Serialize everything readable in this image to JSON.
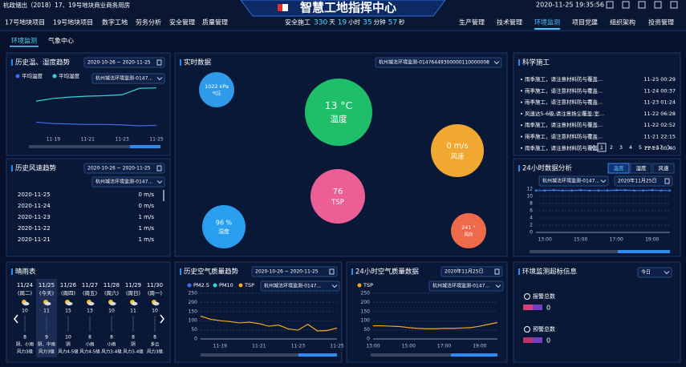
{
  "header": {
    "project": "杭政储出（2018）17、19号地块商业商务用房",
    "title": "智慧工地指挥中心",
    "datetime": "2020-11-25 19:35:56"
  },
  "nav_left": [
    "17号地块项目",
    "19号地块项目",
    "数字工地",
    "劳务分析",
    "安全管理",
    "质量管理"
  ],
  "nav_right": [
    "生产管理",
    "技术管理",
    "环境监测",
    "项目党建",
    "组织架构",
    "投资管理"
  ],
  "nav_right_active": 2,
  "safety": {
    "label": "安全施工",
    "parts": [
      {
        "value": 330,
        "unit": "天"
      },
      {
        "value": 19,
        "unit": "小时"
      },
      {
        "value": 35,
        "unit": "分钟"
      },
      {
        "value": 57,
        "unit": "秒"
      }
    ]
  },
  "tabs": [
    "环境监测",
    "气象中心"
  ],
  "temp_humidity": {
    "title": "历史温、湿度趋势",
    "date_range": "2020-10-26 ~ 2020-11-25",
    "device": "杭州城洁环境监测-0147...",
    "categories": [
      null,
      "11-19",
      null,
      "11-21",
      null,
      "11-23",
      null,
      "11-25"
    ],
    "ylim": [
      0,
      100
    ],
    "series": [
      {
        "name": "平均温度",
        "color": "#3d6fe8",
        "values": [
          22,
          19,
          18,
          17,
          17,
          16,
          14,
          15
        ]
      },
      {
        "name": "平均湿度",
        "color": "#2fd8d8",
        "values": [
          68,
          74,
          77,
          79,
          80,
          82,
          96,
          97
        ]
      }
    ]
  },
  "realtime": {
    "title": "实时数据",
    "device": "杭州城洁环境监测-01476449300000110000008",
    "bubbles": [
      {
        "value": "1022 kPa",
        "label": "气压",
        "color": "#2f9be8"
      },
      {
        "value": "13 °C",
        "label": "温度",
        "color": "#1fbf6a"
      },
      {
        "value": "0 m/s",
        "label": "风速",
        "color": "#f0a830"
      },
      {
        "value": "76",
        "label": "TSP",
        "color": "#ec5f95"
      },
      {
        "value": "96 %",
        "label": "湿度",
        "color": "#2a9ff0"
      },
      {
        "value": "241 °",
        "label": "风向",
        "color": "#ee6a4a"
      }
    ]
  },
  "science": {
    "title": "科学施工",
    "items": [
      {
        "text": "雨季施工，请注意材料防与覆盖...",
        "time": "11-25 00:29"
      },
      {
        "text": "雨季施工，请注意材料防与覆盖...",
        "time": "11-24 00:37"
      },
      {
        "text": "雨季施工，请注意材料防与覆盖...",
        "time": "11-23 01:24"
      },
      {
        "text": "风速达5-6级,请注意扬尘覆盖;室...",
        "time": "11-22 06:28"
      },
      {
        "text": "雨季施工，请注意材料防与覆盖...",
        "time": "11-22 02:52"
      },
      {
        "text": "雨季施工，请注意材料防与覆盖...",
        "time": "11-21 22:15"
      },
      {
        "text": "雨季施工，请注意材料防与覆盖...",
        "time": "11-20 00:40"
      }
    ],
    "pages": [
      "1",
      "2",
      "3",
      "4",
      "5",
      "•••",
      "17"
    ],
    "active_page": 0
  },
  "wind_history": {
    "title": "历史风速趋势",
    "date_range": "2020-10-26 ~ 2020-11-25",
    "device": "杭州城洁环境监测-0147...",
    "rows": [
      {
        "date": "2020-11-25",
        "value": "0 m/s"
      },
      {
        "date": "2020-11-24",
        "value": "0 m/s"
      },
      {
        "date": "2020-11-23",
        "value": "1 m/s"
      },
      {
        "date": "2020-11-22",
        "value": "1 m/s"
      },
      {
        "date": "2020-11-21",
        "value": "1 m/s"
      }
    ]
  },
  "day_analysis": {
    "title": "24小时数据分析",
    "tabs": [
      "温度",
      "湿度",
      "风速"
    ],
    "active_tab": 0,
    "device": "杭州城洁环境监测-0147...",
    "date": "2020年11月25日",
    "categories": [
      null,
      "13:00",
      null,
      null,
      null,
      "15:00",
      null,
      null,
      null,
      "17:00",
      null,
      null,
      null,
      "19:00",
      null,
      null
    ],
    "ylim": [
      0,
      12
    ],
    "yticks": [
      0,
      2,
      4,
      6,
      8,
      10,
      12
    ],
    "markers": true,
    "color": "#3d7ff0",
    "values": [
      11.6,
      11.6,
      11.7,
      11.6,
      11.6,
      11.7,
      11.6,
      11.6,
      11.6,
      11.7,
      11.7,
      11.6,
      11.6,
      11.7,
      11.6,
      11.6
    ]
  },
  "forecast": {
    "title": "晴雨表",
    "days": [
      {
        "date": "11/24",
        "weekday": "(周二)",
        "high": 10,
        "low": 8,
        "weather": "阴、小雨",
        "wind": "风力3级"
      },
      {
        "date": "11/25",
        "weekday": "(今天)",
        "high": 11,
        "low": 9,
        "weather": "阴、中雨",
        "wind": "风力3级"
      },
      {
        "date": "11/26",
        "weekday": "(周四)",
        "high": 15,
        "low": 10,
        "weather": "阴",
        "wind": "风力4-5级"
      },
      {
        "date": "11/27",
        "weekday": "(周五)",
        "high": 13,
        "low": 8,
        "weather": "小雨",
        "wind": "风力4-5级"
      },
      {
        "date": "11/28",
        "weekday": "(周六)",
        "high": 10,
        "low": 8,
        "weather": "小雨",
        "wind": "风力3-4级"
      },
      {
        "date": "11/29",
        "weekday": "(周日)",
        "high": 11,
        "low": 8,
        "weather": "阴",
        "wind": "风力3-4级"
      },
      {
        "date": "11/30",
        "weekday": "(周一)",
        "high": 10,
        "low": 8,
        "weather": "多云",
        "wind": "风力3级"
      }
    ],
    "today": 1
  },
  "air_trend": {
    "title": "历史空气质量趋势",
    "date_range": "2020-10-26 ~ 2020-11-25",
    "device": "杭州城洁环境监测-0147...",
    "categories": [
      null,
      null,
      "11-19",
      null,
      null,
      null,
      "11-21",
      null,
      null,
      null,
      "11-23",
      null,
      null,
      null,
      "11-25"
    ],
    "ylim": [
      0,
      250
    ],
    "yticks": [
      0,
      50,
      100,
      150,
      200,
      250
    ],
    "series": [
      {
        "name": "PM2.5",
        "color": "#3d6fe8",
        "values": [
          null,
          null,
          null,
          null,
          null,
          null,
          null,
          null,
          null,
          null,
          null,
          null,
          null,
          null,
          null
        ]
      },
      {
        "name": "PM10",
        "color": "#2fd8d8",
        "values": [
          null,
          null,
          null,
          null,
          null,
          null,
          null,
          null,
          null,
          null,
          null,
          null,
          null,
          null,
          null
        ]
      },
      {
        "name": "TSP",
        "color": "#f5a623",
        "values": [
          125,
          108,
          100,
          95,
          88,
          92,
          84,
          70,
          76,
          55,
          48,
          80,
          44,
          46,
          60
        ]
      }
    ]
  },
  "air_24h": {
    "title": "24小时空气质量数据",
    "date": "2020年11月25日",
    "device": "杭州城洁环境监测-0147...",
    "categories": [
      "13:00",
      null,
      null,
      null,
      "15:00",
      null,
      null,
      null,
      "17:00",
      null,
      null,
      null,
      "19:00",
      null,
      null
    ],
    "ylim": [
      0,
      250
    ],
    "yticks": [
      0,
      50,
      100,
      150,
      200,
      250
    ],
    "series": [
      {
        "name": "TSP",
        "color": "#f5a623",
        "values": [
          72,
          72,
          70,
          68,
          62,
          58,
          56,
          56,
          58,
          58,
          60,
          62,
          70,
          80,
          90
        ]
      }
    ]
  },
  "alerts": {
    "title": "环境监测超标信息",
    "period": "今日",
    "items": [
      {
        "label": "报警总数",
        "value": 0
      },
      {
        "label": "预警总数",
        "value": 0
      }
    ]
  }
}
